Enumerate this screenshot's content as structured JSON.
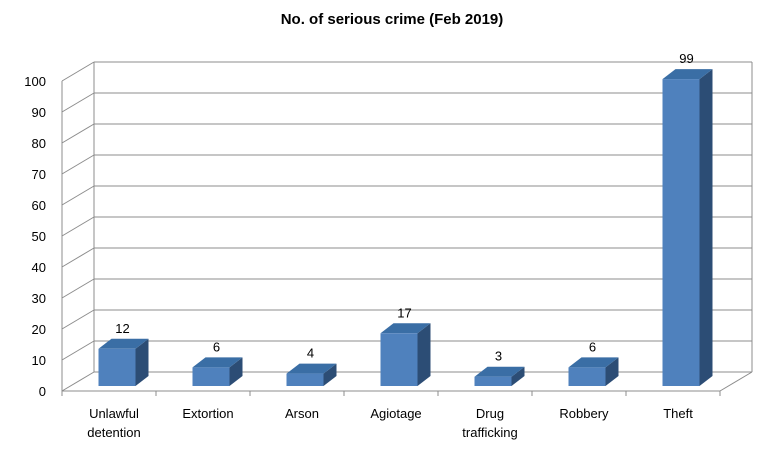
{
  "chart_data": {
    "type": "bar",
    "title": "No. of serious crime (Feb 2019)",
    "categories": [
      "Unlawful detention",
      "Extortion",
      "Arson",
      "Agiotage",
      "Drug trafficking",
      "Robbery",
      "Theft"
    ],
    "category_lines": [
      [
        "Unlawful",
        "detention"
      ],
      [
        "Extortion"
      ],
      [
        "Arson"
      ],
      [
        "Agiotage"
      ],
      [
        "Drug",
        "trafficking"
      ],
      [
        "Robbery"
      ],
      [
        "Theft"
      ]
    ],
    "values": [
      12,
      6,
      4,
      17,
      3,
      6,
      99
    ],
    "data_labels": [
      "12",
      "6",
      "4",
      "17",
      "3",
      "6",
      "99"
    ],
    "ylim": [
      0,
      100
    ],
    "yticks": [
      0,
      10,
      20,
      30,
      40,
      50,
      60,
      70,
      80,
      90,
      100
    ],
    "grid": true,
    "style_3d": true,
    "colors": {
      "bar_front": "#4f81bd",
      "bar_side": "#2c4d75",
      "bar_top": "#3a6ea5",
      "grid": "#8c8c8c"
    }
  }
}
